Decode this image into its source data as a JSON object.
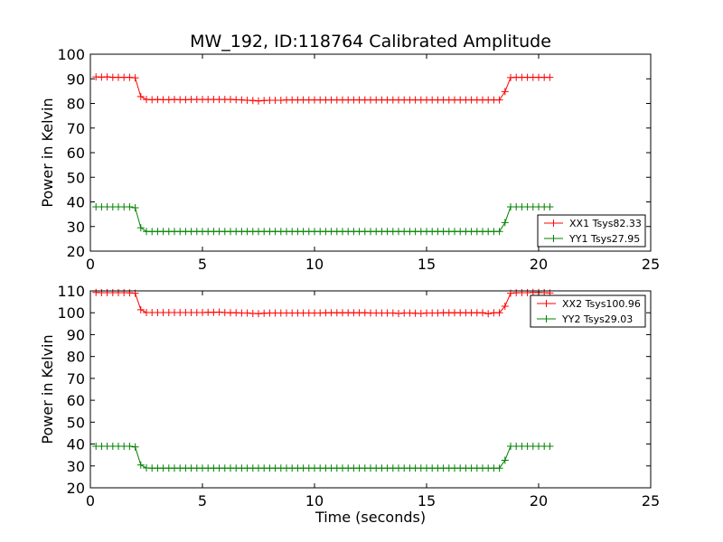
{
  "colors": {
    "xx": "#ff0000",
    "yy": "#008000",
    "axis": "#000000",
    "background": "#ffffff"
  },
  "chart_data": [
    {
      "type": "line",
      "title": "MW_192, ID:118764 Calibrated Amplitude",
      "xlabel": "",
      "ylabel": "Power in Kelvin",
      "xlim": [
        0,
        25
      ],
      "ylim": [
        20,
        100
      ],
      "xticks": [
        0,
        5,
        10,
        15,
        20,
        25
      ],
      "yticks": [
        20,
        30,
        40,
        50,
        60,
        70,
        80,
        90,
        100
      ],
      "grid": false,
      "legend": "lower-right",
      "marker": "plus",
      "series": [
        {
          "name": "XX1 Tsys82.33",
          "color": "#ff0000",
          "x": [
            0.25,
            0.5,
            0.75,
            1.0,
            1.25,
            1.5,
            1.75,
            2.0,
            2.25,
            2.5,
            2.75,
            3.0,
            3.25,
            3.5,
            3.75,
            4.0,
            4.25,
            4.5,
            4.75,
            5.0,
            5.25,
            5.5,
            5.75,
            6.0,
            6.25,
            6.5,
            6.75,
            7.0,
            7.25,
            7.5,
            7.75,
            8.0,
            8.25,
            8.5,
            8.75,
            9.0,
            9.25,
            9.5,
            9.75,
            10.0,
            10.25,
            10.5,
            10.75,
            11.0,
            11.25,
            11.5,
            11.75,
            12.0,
            12.25,
            12.5,
            12.75,
            13.0,
            13.25,
            13.5,
            13.75,
            14.0,
            14.25,
            14.5,
            14.75,
            15.0,
            15.25,
            15.5,
            15.75,
            16.0,
            16.25,
            16.5,
            16.75,
            17.0,
            17.25,
            17.5,
            17.75,
            18.0,
            18.25,
            18.5,
            18.75,
            19.0,
            19.25,
            19.5,
            19.75,
            20.0,
            20.25,
            20.5
          ],
          "y": [
            90.8,
            90.7,
            90.8,
            90.6,
            90.6,
            90.6,
            90.6,
            90.4,
            82.8,
            81.6,
            81.5,
            81.6,
            81.5,
            81.5,
            81.6,
            81.5,
            81.5,
            81.6,
            81.6,
            81.6,
            81.6,
            81.6,
            81.6,
            81.6,
            81.6,
            81.5,
            81.4,
            81.3,
            81.2,
            81.0,
            81.2,
            81.3,
            81.3,
            81.3,
            81.4,
            81.4,
            81.4,
            81.4,
            81.4,
            81.4,
            81.4,
            81.4,
            81.4,
            81.4,
            81.4,
            81.4,
            81.4,
            81.4,
            81.4,
            81.4,
            81.4,
            81.4,
            81.4,
            81.4,
            81.4,
            81.4,
            81.4,
            81.4,
            81.4,
            81.4,
            81.4,
            81.4,
            81.4,
            81.4,
            81.4,
            81.4,
            81.4,
            81.4,
            81.4,
            81.4,
            81.4,
            81.4,
            81.4,
            84.8,
            90.5,
            90.6,
            90.6,
            90.6,
            90.6,
            90.6,
            90.6,
            90.6
          ]
        },
        {
          "name": "YY1 Tsys27.95",
          "color": "#008000",
          "x": [
            0.25,
            0.5,
            0.75,
            1.0,
            1.25,
            1.5,
            1.75,
            2.0,
            2.25,
            2.5,
            2.75,
            3.0,
            3.25,
            3.5,
            3.75,
            4.0,
            4.25,
            4.5,
            4.75,
            5.0,
            5.25,
            5.5,
            5.75,
            6.0,
            6.25,
            6.5,
            6.75,
            7.0,
            7.25,
            7.5,
            7.75,
            8.0,
            8.25,
            8.5,
            8.75,
            9.0,
            9.25,
            9.5,
            9.75,
            10.0,
            10.25,
            10.5,
            10.75,
            11.0,
            11.25,
            11.5,
            11.75,
            12.0,
            12.25,
            12.5,
            12.75,
            13.0,
            13.25,
            13.5,
            13.75,
            14.0,
            14.25,
            14.5,
            14.75,
            15.0,
            15.25,
            15.5,
            15.75,
            16.0,
            16.25,
            16.5,
            16.75,
            17.0,
            17.25,
            17.5,
            17.75,
            18.0,
            18.25,
            18.5,
            18.75,
            19.0,
            19.25,
            19.5,
            19.75,
            20.0,
            20.25,
            20.5
          ],
          "y": [
            38.0,
            38.0,
            38.0,
            38.0,
            38.0,
            38.0,
            38.0,
            37.6,
            29.5,
            28.0,
            28.0,
            28.0,
            28.0,
            28.0,
            28.0,
            28.0,
            28.0,
            28.0,
            28.0,
            28.0,
            28.0,
            28.0,
            28.0,
            28.0,
            28.0,
            28.0,
            28.0,
            28.0,
            28.0,
            28.0,
            28.0,
            28.0,
            28.0,
            28.0,
            28.0,
            28.0,
            28.0,
            28.0,
            28.0,
            28.0,
            28.0,
            28.0,
            28.0,
            28.0,
            28.0,
            28.0,
            28.0,
            28.0,
            28.0,
            28.0,
            28.0,
            28.0,
            28.0,
            28.0,
            28.0,
            28.0,
            28.0,
            28.0,
            28.0,
            28.0,
            28.0,
            28.0,
            28.0,
            28.0,
            28.0,
            28.0,
            28.0,
            28.0,
            28.0,
            28.0,
            28.0,
            28.0,
            28.0,
            31.6,
            38.0,
            38.0,
            38.0,
            38.0,
            38.0,
            38.0,
            38.0,
            38.0
          ]
        }
      ]
    },
    {
      "type": "line",
      "title": "",
      "xlabel": "Time (seconds)",
      "ylabel": "Power in Kelvin",
      "xlim": [
        0,
        25
      ],
      "ylim": [
        20,
        110
      ],
      "xticks": [
        0,
        5,
        10,
        15,
        20,
        25
      ],
      "yticks": [
        20,
        30,
        40,
        50,
        60,
        70,
        80,
        90,
        100,
        110
      ],
      "grid": false,
      "legend": "upper-right",
      "marker": "plus",
      "series": [
        {
          "name": "XX2 Tsys100.96",
          "color": "#ff0000",
          "x": [
            0.25,
            0.5,
            0.75,
            1.0,
            1.25,
            1.5,
            1.75,
            2.0,
            2.25,
            2.5,
            2.75,
            3.0,
            3.25,
            3.5,
            3.75,
            4.0,
            4.25,
            4.5,
            4.75,
            5.0,
            5.25,
            5.5,
            5.75,
            6.0,
            6.25,
            6.5,
            6.75,
            7.0,
            7.25,
            7.5,
            7.75,
            8.0,
            8.25,
            8.5,
            8.75,
            9.0,
            9.25,
            9.5,
            9.75,
            10.0,
            10.25,
            10.5,
            10.75,
            11.0,
            11.25,
            11.5,
            11.75,
            12.0,
            12.25,
            12.5,
            12.75,
            13.0,
            13.25,
            13.5,
            13.75,
            14.0,
            14.25,
            14.5,
            14.75,
            15.0,
            15.25,
            15.5,
            15.75,
            16.0,
            16.25,
            16.5,
            16.75,
            17.0,
            17.25,
            17.5,
            17.75,
            18.0,
            18.25,
            18.5,
            18.75,
            19.0,
            19.25,
            19.5,
            19.75,
            20.0,
            20.25,
            20.5
          ],
          "y": [
            109.3,
            109.2,
            109.2,
            109.2,
            109.2,
            109.2,
            109.1,
            108.9,
            101.4,
            100.1,
            100.1,
            100.1,
            100.1,
            100.1,
            100.1,
            100.1,
            100.1,
            100.1,
            100.1,
            100.1,
            100.2,
            100.2,
            100.3,
            100.1,
            100.0,
            100.0,
            99.9,
            99.9,
            99.7,
            99.6,
            99.8,
            99.9,
            99.9,
            99.9,
            99.9,
            99.9,
            99.9,
            99.9,
            99.9,
            99.9,
            99.9,
            100.0,
            100.0,
            100.0,
            100.0,
            100.0,
            100.0,
            100.0,
            100.0,
            99.9,
            99.9,
            99.9,
            99.9,
            99.9,
            99.7,
            99.9,
            99.9,
            99.8,
            99.7,
            99.9,
            99.9,
            99.9,
            100.0,
            100.0,
            100.0,
            100.0,
            100.0,
            100.0,
            100.0,
            100.0,
            99.6,
            100.0,
            100.0,
            103.0,
            108.9,
            109.1,
            109.2,
            109.2,
            109.3,
            109.3,
            109.2,
            109.0
          ]
        },
        {
          "name": "YY2 Tsys29.03",
          "color": "#008000",
          "x": [
            0.25,
            0.5,
            0.75,
            1.0,
            1.25,
            1.5,
            1.75,
            2.0,
            2.25,
            2.5,
            2.75,
            3.0,
            3.25,
            3.5,
            3.75,
            4.0,
            4.25,
            4.5,
            4.75,
            5.0,
            5.25,
            5.5,
            5.75,
            6.0,
            6.25,
            6.5,
            6.75,
            7.0,
            7.25,
            7.5,
            7.75,
            8.0,
            8.25,
            8.5,
            8.75,
            9.0,
            9.25,
            9.5,
            9.75,
            10.0,
            10.25,
            10.5,
            10.75,
            11.0,
            11.25,
            11.5,
            11.75,
            12.0,
            12.25,
            12.5,
            12.75,
            13.0,
            13.25,
            13.5,
            13.75,
            14.0,
            14.25,
            14.5,
            14.75,
            15.0,
            15.25,
            15.5,
            15.75,
            16.0,
            16.25,
            16.5,
            16.75,
            17.0,
            17.25,
            17.5,
            17.75,
            18.0,
            18.25,
            18.5,
            18.75,
            19.0,
            19.25,
            19.5,
            19.75,
            20.0,
            20.25,
            20.5
          ],
          "y": [
            39.0,
            39.0,
            39.0,
            39.0,
            39.0,
            39.0,
            39.0,
            38.7,
            30.4,
            29.1,
            29.0,
            29.0,
            29.0,
            29.0,
            29.0,
            29.0,
            29.0,
            29.0,
            29.0,
            29.0,
            29.0,
            29.0,
            29.0,
            29.0,
            29.0,
            29.0,
            29.0,
            29.0,
            29.0,
            29.0,
            29.0,
            29.0,
            29.0,
            29.0,
            29.0,
            29.0,
            29.0,
            29.0,
            29.0,
            29.0,
            29.0,
            29.0,
            29.0,
            29.0,
            29.0,
            29.0,
            29.0,
            29.0,
            29.0,
            29.0,
            29.0,
            29.0,
            29.0,
            29.0,
            29.0,
            29.0,
            29.0,
            29.0,
            29.0,
            29.0,
            29.0,
            29.0,
            29.0,
            29.0,
            29.0,
            29.0,
            29.0,
            29.0,
            29.0,
            29.0,
            29.0,
            29.0,
            29.0,
            32.6,
            39.0,
            39.0,
            39.0,
            39.0,
            39.0,
            39.0,
            39.0,
            39.0
          ]
        }
      ]
    }
  ]
}
